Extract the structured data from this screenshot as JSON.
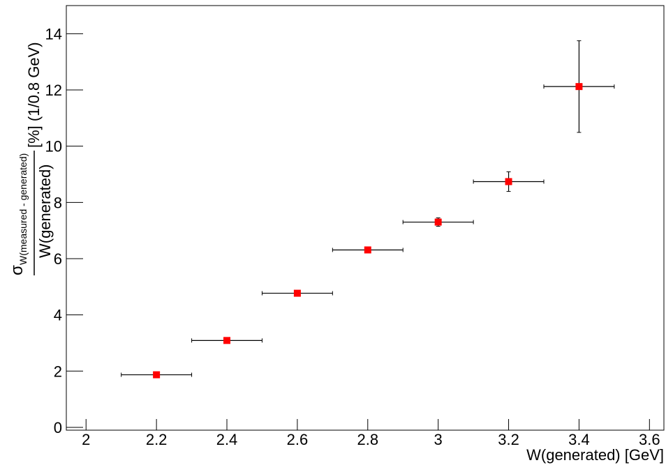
{
  "chart_data": {
    "type": "errorbar",
    "xlabel": "W(generated) [GeV]",
    "ylabel": {
      "symbol": "σ",
      "subscript": "W(measured - generated)",
      "denominator": "W(generated)",
      "suffix": "[%] (1/0.8 GeV)"
    },
    "xlim": [
      1.944,
      3.641
    ],
    "ylim": [
      -0.1,
      15
    ],
    "xticks": [
      2,
      2.2,
      2.4,
      2.6,
      2.8,
      3,
      3.2,
      3.4,
      3.6
    ],
    "yticks": [
      0,
      2,
      4,
      6,
      8,
      10,
      12,
      14
    ],
    "series": [
      {
        "color": "#ff0000",
        "x": [
          2.2,
          2.4,
          2.6,
          2.8,
          3.0,
          3.2,
          3.4
        ],
        "values": [
          1.87,
          3.09,
          4.77,
          6.31,
          7.3,
          8.74,
          12.12
        ],
        "xerr": [
          0.1,
          0.1,
          0.1,
          0.1,
          0.1,
          0.1,
          0.1
        ],
        "yerr": [
          0.04,
          0.04,
          0.05,
          0.06,
          0.15,
          0.35,
          1.63
        ]
      }
    ]
  }
}
